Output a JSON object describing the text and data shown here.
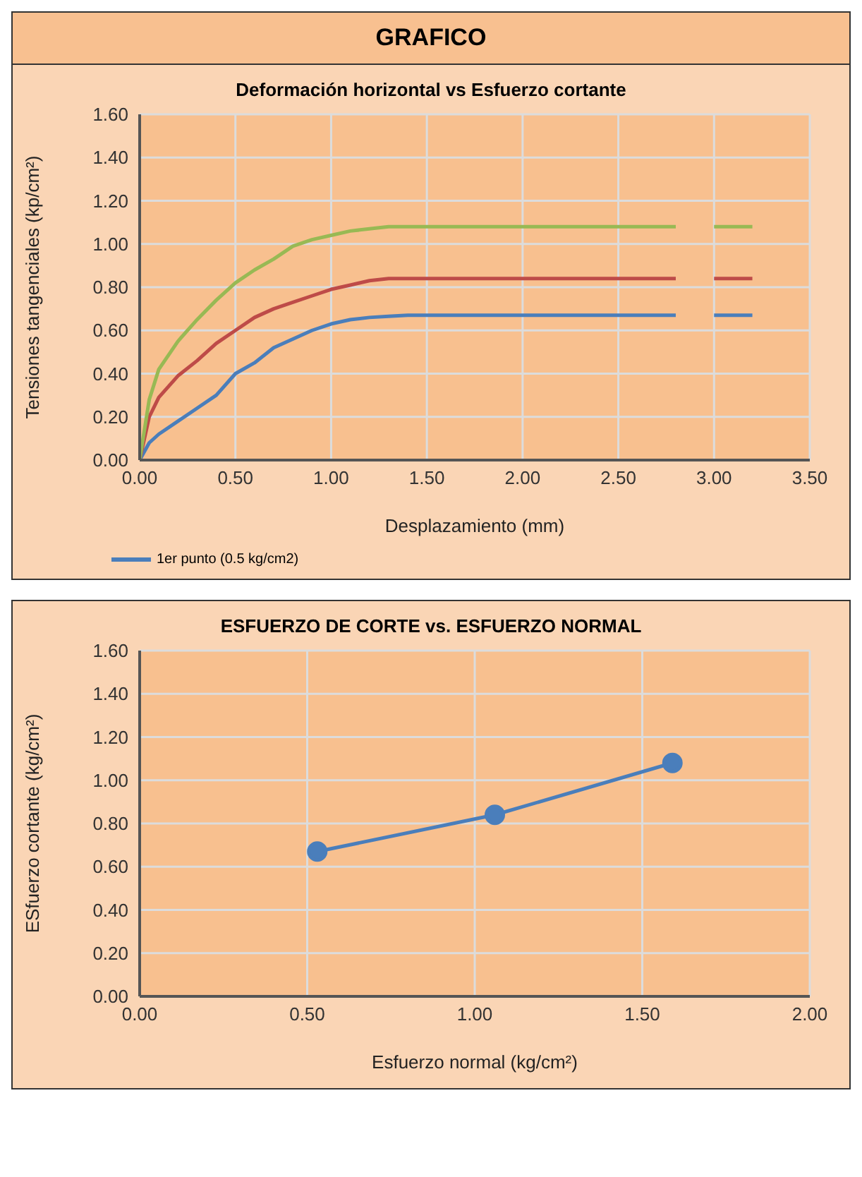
{
  "chart_data": [
    {
      "type": "line",
      "title": "Deformación horizontal vs Esfuerzo cortante",
      "annotations": [
        "GRAFICO"
      ],
      "xlabel": "Desplazamiento (mm)",
      "ylabel": "Tensiones tangenciales (kp/cm²)",
      "x": [
        0,
        0.05,
        0.1,
        0.2,
        0.3,
        0.4,
        0.5,
        0.6,
        0.7,
        0.8,
        0.9,
        1.0,
        1.1,
        1.2,
        1.3,
        1.4,
        2.8,
        2.9,
        3.0,
        3.2
      ],
      "series": [
        {
          "name": "1er punto (0.5 kg/cm2)",
          "color": "#4a7ebb",
          "values": [
            0,
            0.08,
            0.12,
            0.18,
            0.24,
            0.3,
            0.4,
            0.45,
            0.52,
            0.56,
            0.6,
            0.63,
            0.65,
            0.66,
            0.665,
            0.67,
            0.67,
            null,
            0.67,
            0.67
          ]
        },
        {
          "color": "#be4b48",
          "values": [
            0,
            0.2,
            0.29,
            0.39,
            0.46,
            0.54,
            0.6,
            0.66,
            0.7,
            0.73,
            0.76,
            0.79,
            0.81,
            0.83,
            0.84,
            0.84,
            0.84,
            null,
            0.84,
            0.84
          ]
        },
        {
          "color": "#98b954",
          "values": [
            0,
            0.28,
            0.42,
            0.55,
            0.65,
            0.74,
            0.82,
            0.88,
            0.93,
            0.99,
            1.02,
            1.04,
            1.06,
            1.07,
            1.08,
            1.08,
            1.08,
            null,
            1.08,
            1.08
          ]
        }
      ],
      "xlim": [
        0,
        3.5
      ],
      "xticks": [
        {
          "value": 0,
          "label": "0.00"
        },
        {
          "value": 0.5,
          "label": "0.50"
        },
        {
          "value": 1,
          "label": "1.00"
        },
        {
          "value": 1.5,
          "label": "1.50"
        },
        {
          "value": 2,
          "label": "2.00"
        },
        {
          "value": 2.5,
          "label": "2.50"
        },
        {
          "value": 3,
          "label": "3.00"
        },
        {
          "value": 3.5,
          "label": "3.50"
        }
      ],
      "ylim": [
        0,
        1.6
      ],
      "yticks": [
        {
          "value": 0,
          "label": "0.00"
        },
        {
          "value": 0.2,
          "label": "0.20"
        },
        {
          "value": 0.4,
          "label": "0.40"
        },
        {
          "value": 0.6,
          "label": "0.60"
        },
        {
          "value": 0.8,
          "label": "0.80"
        },
        {
          "value": 1,
          "label": "1.00"
        },
        {
          "value": 1.2,
          "label": "1.20"
        },
        {
          "value": 1.4,
          "label": "1.40"
        },
        {
          "value": 1.6,
          "label": "1.60"
        }
      ],
      "grid": true,
      "legend": "bottom left",
      "marker": "none"
    },
    {
      "type": "line",
      "title": "ESFUERZO DE CORTE  vs. ESFUERZO NORMAL",
      "xlabel": "Esfuerzo normal (kg/cm²)",
      "ylabel": "ESfuerzo cortante (kg/cm²)",
      "x": [
        0.53,
        1.06,
        1.59
      ],
      "series": [
        {
          "color": "#4a7ebb",
          "values": [
            0.67,
            0.84,
            1.08
          ]
        }
      ],
      "xlim": [
        0,
        2
      ],
      "xticks": [
        {
          "value": 0,
          "label": "0.00"
        },
        {
          "value": 0.5,
          "label": "0.50"
        },
        {
          "value": 1,
          "label": "1.00"
        },
        {
          "value": 1.5,
          "label": "1.50"
        },
        {
          "value": 2,
          "label": "2.00"
        }
      ],
      "ylim": [
        0,
        1.6
      ],
      "yticks": [
        {
          "value": 0,
          "label": "0.00"
        },
        {
          "value": 0.2,
          "label": "0.20"
        },
        {
          "value": 0.4,
          "label": "0.40"
        },
        {
          "value": 0.6,
          "label": "0.60"
        },
        {
          "value": 0.8,
          "label": "0.80"
        },
        {
          "value": 1,
          "label": "1.00"
        },
        {
          "value": 1.2,
          "label": "1.20"
        },
        {
          "value": 1.4,
          "label": "1.40"
        },
        {
          "value": 1.6,
          "label": "1.60"
        }
      ],
      "grid": true,
      "marker": "circle"
    }
  ]
}
